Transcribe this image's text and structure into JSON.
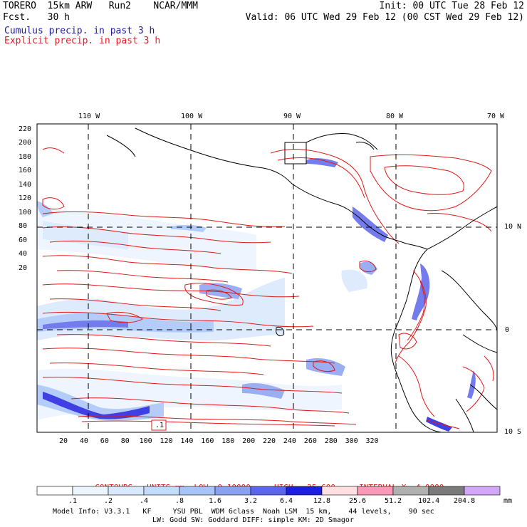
{
  "header": {
    "left_line1": "TORERO  15km ARW   Run2    NCAR/MMM",
    "left_line2": "Fcst.   30 h",
    "right_line1": "Init: 00 UTC Tue 28 Feb 12",
    "right_line2": "Valid: 06 UTC Wed 29 Feb 12 (00 CST Wed 29 Feb 12)",
    "legend_cumulus": "Cumulus precip. in past 3 h",
    "legend_explicit": "Explicit precip. in past 3 h"
  },
  "axes": {
    "top_lon_labels": [
      "110 W",
      "100 W",
      "90 W",
      "80 W",
      "70 W"
    ],
    "left_y_ticks": [
      "220",
      "200",
      "180",
      "160",
      "140",
      "120",
      "100",
      "80",
      "60",
      "40",
      "20"
    ],
    "bottom_x_ticks": [
      "20",
      "40",
      "60",
      "80",
      "100",
      "120",
      "140",
      "160",
      "180",
      "200",
      "220",
      "240",
      "260",
      "280",
      "300",
      "320"
    ],
    "right_lat_labels": [
      "10 N",
      "0",
      "10 S"
    ]
  },
  "map_annotation": ".1",
  "contour_info": {
    "contours": "CONTOURS:",
    "units": "UNITS=mm",
    "low": "LOW= 0.10000",
    "high": "HIGH=  25.600",
    "interval": "INTERVAL=X  4.0000"
  },
  "colorbar": {
    "labels": [
      ".1",
      ".2",
      ".4",
      ".8",
      "1.6",
      "3.2",
      "6.4",
      "12.8",
      "25.6",
      "51.2",
      "102.4",
      "204.8"
    ],
    "unit": "mm",
    "colors": [
      "#ffffff",
      "#ecf4fe",
      "#d8e8fd",
      "#c4dcfb",
      "#a7c4f8",
      "#8aa0f0",
      "#5c66ea",
      "#1e1ee0",
      "#fee0e0",
      "#fe98b8",
      "#b0b0b0",
      "#7a7a7a",
      "#d2a6f8"
    ]
  },
  "footer": {
    "line1": "Model Info: V3.3.1   KF     YSU PBL  WDM 6class  Noah LSM  15 km,    44 levels,    90 sec",
    "line2": "LW: Godd SW: Goddard DIFF: simple KM: 2D Smagor"
  }
}
